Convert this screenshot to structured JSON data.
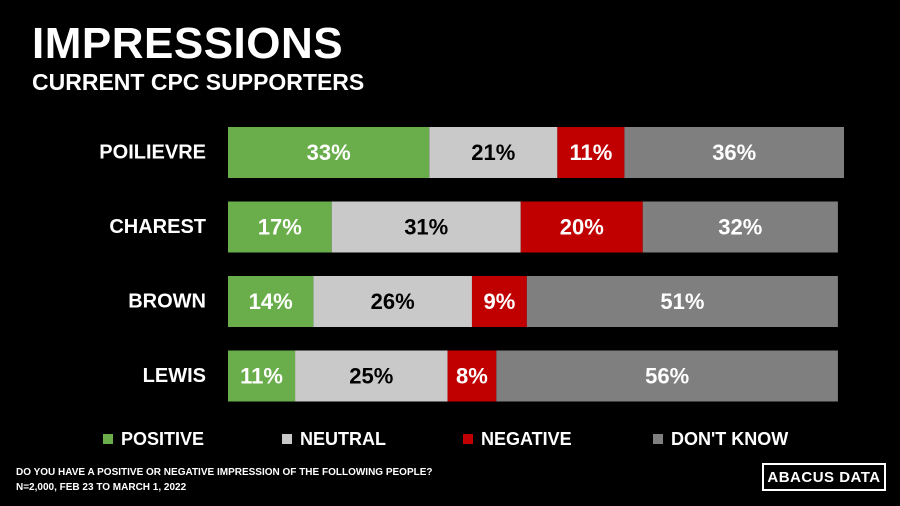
{
  "header": {
    "title": "IMPRESSIONS",
    "subtitle": "CURRENT CPC SUPPORTERS"
  },
  "chart_data": {
    "type": "bar",
    "orientation": "horizontal",
    "stacked": true,
    "categories": [
      "POILIEVRE",
      "CHAREST",
      "BROWN",
      "LEWIS"
    ],
    "series": [
      {
        "name": "POSITIVE",
        "color": "#6aad4b",
        "label_color": "#ffffff",
        "values": [
          33,
          17,
          14,
          11
        ]
      },
      {
        "name": "NEUTRAL",
        "color": "#c9c9c9",
        "label_color": "#000000",
        "values": [
          21,
          31,
          26,
          25
        ]
      },
      {
        "name": "NEGATIVE",
        "color": "#c00000",
        "label_color": "#ffffff",
        "values": [
          11,
          20,
          9,
          8
        ]
      },
      {
        "name": "DON'T KNOW",
        "color": "#7f7f7f",
        "label_color": "#ffffff",
        "values": [
          36,
          32,
          51,
          56
        ]
      }
    ],
    "value_suffix": "%",
    "xlim": [
      0,
      101
    ],
    "grid": false,
    "legend_position": "bottom"
  },
  "footnote": {
    "question": "DO YOU HAVE A POSITIVE OR NEGATIVE IMPRESSION OF THE FOLLOWING PEOPLE?",
    "sample": "N=2,000,  FEB 23 TO MARCH 1, 2022"
  },
  "logo": {
    "text": "ABACUS DATA"
  }
}
